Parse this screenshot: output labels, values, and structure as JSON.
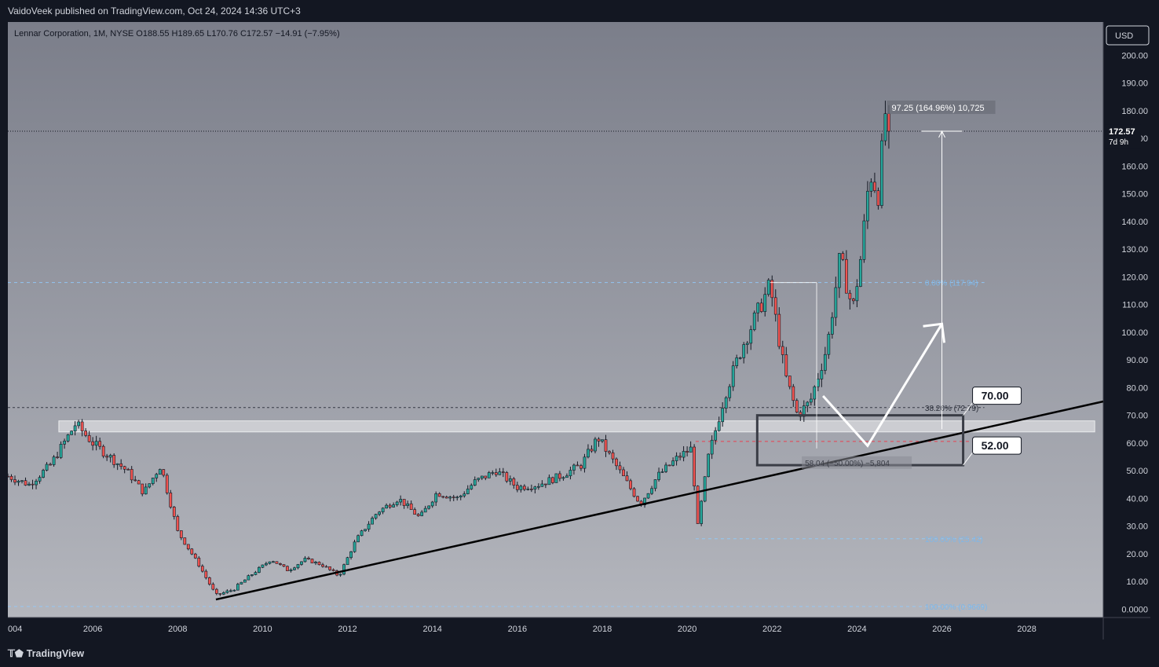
{
  "header": {
    "published": "VaidoVeek published on TradingView.com, Oct 24, 2024 14:36 UTC+3"
  },
  "footer": {
    "brand": "TradingView",
    "brand_icon": "tradingview-logo-icon"
  },
  "chart_data": {
    "type": "candlestick",
    "legend": "Lennar Corporation, 1M, NYSE  O188.55  H189.65  L170.76  C172.57  −14.91 (−7.95%)",
    "currency": "USD",
    "x_tick_labels": [
      "004",
      "2006",
      "2008",
      "2010",
      "2012",
      "2014",
      "2016",
      "2018",
      "2020",
      "2022",
      "2024",
      "2026",
      "2028"
    ],
    "y_tick_labels": [
      "0.0000",
      "10.00",
      "20.00",
      "30.00",
      "40.00",
      "50.00",
      "60.00",
      "70.00",
      "80.00",
      "90.00",
      "100.00",
      "110.00",
      "120.00",
      "130.00",
      "140.00",
      "150.00",
      "160.00",
      "170.00",
      "180.00",
      "190.00",
      "200.00"
    ],
    "ylim": [
      -3,
      212
    ],
    "xlim": [
      2004.0,
      2029.8
    ],
    "last_price": {
      "value": 172.57,
      "label": "172.57",
      "countdown": "7d 9h"
    },
    "price_path": [
      [
        2004.0,
        48
      ],
      [
        2004.5,
        45
      ],
      [
        2005.0,
        52
      ],
      [
        2005.6,
        67
      ],
      [
        2006.0,
        60
      ],
      [
        2006.4,
        55
      ],
      [
        2006.8,
        50
      ],
      [
        2007.2,
        42
      ],
      [
        2007.6,
        52
      ],
      [
        2008.0,
        28
      ],
      [
        2008.5,
        16
      ],
      [
        2008.9,
        5
      ],
      [
        2009.3,
        7
      ],
      [
        2009.7,
        12
      ],
      [
        2010.2,
        18
      ],
      [
        2010.6,
        14
      ],
      [
        2011.0,
        18
      ],
      [
        2011.4,
        16
      ],
      [
        2011.8,
        12
      ],
      [
        2012.2,
        25
      ],
      [
        2012.7,
        35
      ],
      [
        2013.2,
        40
      ],
      [
        2013.7,
        33
      ],
      [
        2014.1,
        42
      ],
      [
        2014.6,
        40
      ],
      [
        2015.0,
        46
      ],
      [
        2015.5,
        50
      ],
      [
        2016.0,
        44
      ],
      [
        2016.5,
        45
      ],
      [
        2017.0,
        48
      ],
      [
        2017.5,
        52
      ],
      [
        2017.9,
        62
      ],
      [
        2018.4,
        50
      ],
      [
        2018.9,
        38
      ],
      [
        2019.3,
        48
      ],
      [
        2019.8,
        55
      ],
      [
        2020.1,
        58
      ],
      [
        2020.25,
        30
      ],
      [
        2020.5,
        55
      ],
      [
        2020.9,
        78
      ],
      [
        2021.3,
        95
      ],
      [
        2021.8,
        112
      ],
      [
        2021.95,
        117
      ],
      [
        2022.3,
        85
      ],
      [
        2022.6,
        70
      ],
      [
        2022.9,
        75
      ],
      [
        2023.3,
        95
      ],
      [
        2023.6,
        127
      ],
      [
        2023.9,
        108
      ],
      [
        2024.1,
        128
      ],
      [
        2024.3,
        158
      ],
      [
        2024.5,
        150
      ],
      [
        2024.7,
        185
      ],
      [
        2024.8,
        172.57
      ]
    ],
    "series": [
      {
        "name": "white up arrow",
        "points": [
          [
            2023.2,
            77
          ],
          [
            2024.25,
            59
          ],
          [
            2026.0,
            103
          ]
        ]
      },
      {
        "name": "black trendline",
        "points": [
          [
            2008.9,
            3.5
          ],
          [
            2029.8,
            75
          ]
        ]
      }
    ],
    "annotations": {
      "price_target_box_top": "70.00",
      "price_target_box_bottom": "52.00",
      "box_range": [
        52,
        70
      ],
      "box_x": [
        2021.65,
        2026.5
      ],
      "resistance_zone": [
        64,
        68
      ],
      "range_measure": {
        "label": "97.25 (164.96%) 10,725",
        "from": 65,
        "to": 172.57,
        "x": 2026.0
      },
      "range_measure_lower": {
        "label": "58.04 (−50.00%) −5,804",
        "value": 58.04
      },
      "fib_levels": [
        {
          "label": "0.00% (117.94)",
          "value": 117.94,
          "color": "#90caf9"
        },
        {
          "label": "38.20% (72.79)",
          "value": 72.79,
          "color": "#2a2e39"
        },
        {
          "label": "(60.57)",
          "value": 60.57,
          "color": "#f23645"
        },
        {
          "label": "100.00% (25.42)",
          "value": 25.42,
          "color": "#90caf9"
        },
        {
          "label": "100.00% (0.9669)",
          "value": 0.9669,
          "color": "#90caf9"
        }
      ]
    },
    "colors": {
      "up": "#26a69a",
      "down": "#ef5350",
      "panel_top": "#7b7e8a",
      "panel_bottom": "#b4b6bd"
    }
  }
}
